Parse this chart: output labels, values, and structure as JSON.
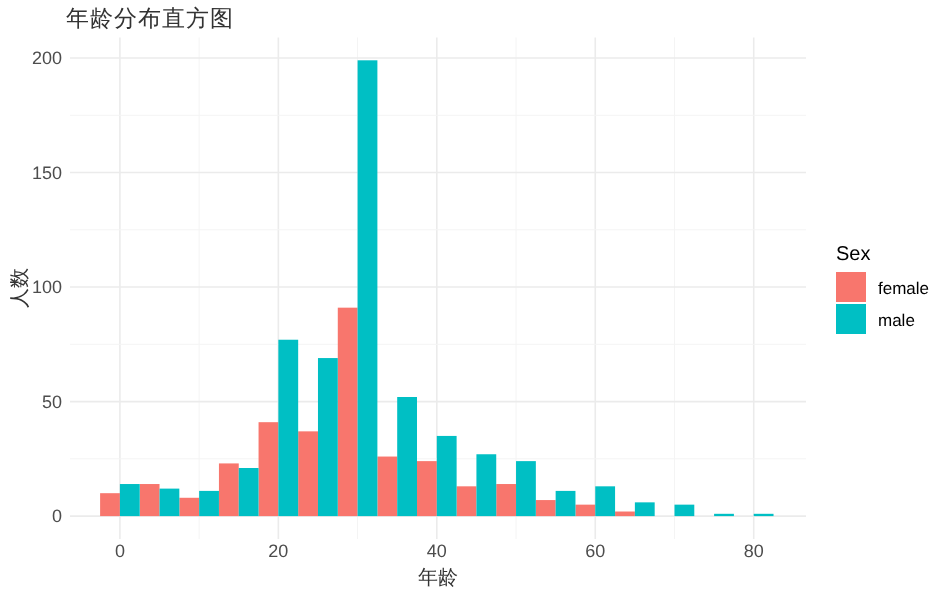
{
  "chart_data": {
    "type": "histogram",
    "title": "年龄分布直方图",
    "xlabel": "年龄",
    "ylabel": "人数",
    "legend_title": "Sex",
    "bins": [
      -2.5,
      2.5,
      7.5,
      12.5,
      17.5,
      22.5,
      27.5,
      32.5,
      37.5,
      42.5,
      47.5,
      52.5,
      57.5,
      62.5,
      67.5,
      72.5,
      77.5,
      82.5
    ],
    "series": [
      {
        "name": "female",
        "color": "#f8766d",
        "values": [
          10,
          14,
          8,
          23,
          41,
          37,
          91,
          26,
          24,
          13,
          14,
          7,
          5,
          2,
          0,
          0,
          0
        ]
      },
      {
        "name": "male",
        "color": "#00bfc4",
        "values": [
          14,
          12,
          11,
          21,
          77,
          69,
          199,
          52,
          35,
          27,
          24,
          11,
          13,
          6,
          5,
          1,
          1
        ]
      }
    ],
    "xlim": [
      -6.3,
      86.6
    ],
    "ylim": [
      -10,
      209
    ],
    "xticks": [
      0,
      20,
      40,
      60,
      80
    ],
    "yticks": [
      0,
      50,
      100,
      150,
      200
    ],
    "grid": true,
    "legend": "right"
  }
}
